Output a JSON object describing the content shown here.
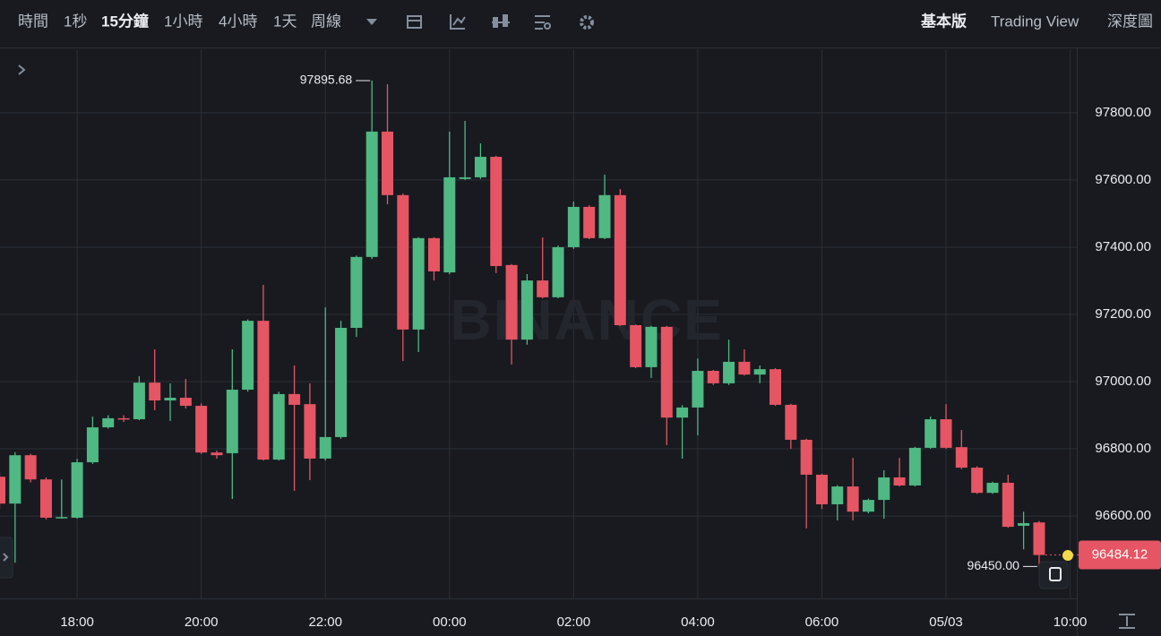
{
  "toolbar": {
    "intervals": [
      "時間",
      "1秒",
      "15分鐘",
      "1小時",
      "4小時",
      "1天",
      "周線"
    ],
    "views": [
      "基本版",
      "Trading View",
      "深度圖"
    ]
  },
  "chart_data": {
    "type": "candlestick",
    "watermark": "BINANCE",
    "up_color": "#4fb883",
    "down_color": "#e55563",
    "categories": [
      null,
      null,
      null,
      null,
      null,
      null,
      null,
      null,
      null,
      null,
      null,
      null,
      null,
      null,
      null,
      null,
      null,
      null,
      null,
      null,
      null,
      null,
      null,
      null,
      null,
      null,
      null,
      null,
      null,
      null,
      null,
      null,
      null,
      null,
      null,
      null,
      null,
      null,
      null,
      null,
      null,
      null,
      null,
      null,
      null,
      null,
      null,
      null,
      null,
      null,
      null,
      null,
      null,
      null,
      null,
      null,
      null,
      null,
      null,
      null,
      null,
      null,
      null,
      null,
      null,
      null,
      null,
      null
    ],
    "open": [
      96717,
      96637,
      96781,
      96709,
      96595,
      96595,
      96760,
      96864,
      96891,
      96888,
      96997,
      96944,
      96952,
      96928,
      96789,
      96787,
      96976,
      97181,
      96768,
      96963,
      96933,
      96771,
      96835,
      97160,
      97371,
      97744,
      97555,
      97155,
      97427,
      97325,
      97603,
      97608,
      97669,
      97347,
      97125,
      97301,
      97251,
      97400,
      97520,
      97427,
      97555,
      97168,
      97043,
      97163,
      96893,
      96923,
      97032,
      96995,
      97059,
      97021,
      97037,
      96931,
      96827,
      96723,
      96635,
      96688,
      96613,
      96648,
      96715,
      96691,
      96803,
      96888,
      96805,
      96744,
      96669,
      96699,
      96571,
      96581
    ],
    "high": [
      96730,
      96790,
      96785,
      96715,
      96709,
      96770,
      96896,
      96900,
      96900,
      97016,
      97096,
      96995,
      97008,
      96935,
      96795,
      97096,
      97185,
      97288,
      96970,
      97048,
      96995,
      97221,
      97181,
      97375,
      97895.68,
      97885,
      97560,
      97430,
      97430,
      97744,
      97776,
      97709,
      97672,
      97350,
      97320,
      97429,
      97405,
      97536,
      97525,
      97616,
      97573,
      97170,
      97166,
      97166,
      96930,
      97069,
      97035,
      97125,
      97096,
      97048,
      97040,
      96934,
      96830,
      96726,
      96692,
      96773,
      96652,
      96736,
      96773,
      96806,
      96896,
      96933,
      96856,
      96748,
      96702,
      96723,
      96613,
      96585
    ],
    "low": [
      96620,
      96461,
      96700,
      96590,
      96592,
      96592,
      96755,
      96860,
      96880,
      96885,
      96915,
      96883,
      96920,
      96785,
      96771,
      96651,
      96970,
      96765,
      96765,
      96675,
      96707,
      96765,
      96830,
      97133,
      97365,
      97528,
      97061,
      97088,
      97301,
      97320,
      97600,
      97603,
      97323,
      97051,
      97110,
      97248,
      97248,
      97395,
      97424,
      97424,
      97165,
      97040,
      97011,
      96811,
      96771,
      96840,
      96990,
      96990,
      97018,
      96995,
      96928,
      96800,
      96563,
      96621,
      96587,
      96587,
      96608,
      96592,
      96688,
      96688,
      96800,
      96800,
      96740,
      96666,
      96666,
      96565,
      96501,
      96450
    ],
    "close": [
      96637,
      96781,
      96709,
      96595,
      96597,
      96760,
      96864,
      96891,
      96888,
      96997,
      96944,
      96952,
      96928,
      96789,
      96781,
      96976,
      97181,
      96768,
      96963,
      96931,
      96771,
      96835,
      97160,
      97371,
      97744,
      97555,
      97155,
      97427,
      97328,
      97608,
      97608,
      97669,
      97344,
      97125,
      97301,
      97251,
      97400,
      97520,
      97427,
      97555,
      97168,
      97043,
      97163,
      96893,
      96923,
      97032,
      96995,
      97059,
      97021,
      97037,
      96931,
      96827,
      96723,
      96635,
      96688,
      96613,
      96648,
      96715,
      96691,
      96803,
      96888,
      96803,
      96744,
      96669,
      96699,
      96568,
      96579,
      96484.12
    ],
    "ylim": [
      96355,
      97989
    ],
    "yticks": [
      {
        "value": 96600,
        "label": "96600.00"
      },
      {
        "value": 96800,
        "label": "96800.00"
      },
      {
        "value": 97000,
        "label": "97000.00"
      },
      {
        "value": 97200,
        "label": "97200.00"
      },
      {
        "value": 97400,
        "label": "97400.00"
      },
      {
        "value": 97600,
        "label": "97600.00"
      },
      {
        "value": 97800,
        "label": "97800.00"
      }
    ],
    "xticks": [
      {
        "value": 5,
        "label": "18:00"
      },
      {
        "value": 13,
        "label": "20:00"
      },
      {
        "value": 21,
        "label": "22:00"
      },
      {
        "value": 29,
        "label": "00:00"
      },
      {
        "value": 37,
        "label": "02:00"
      },
      {
        "value": 45,
        "label": "04:00"
      },
      {
        "value": 53,
        "label": "06:00"
      },
      {
        "value": 61,
        "label": "05/03"
      },
      {
        "value": 69,
        "label": "10:00"
      }
    ],
    "grid": true,
    "max_label": {
      "value": 97895.68,
      "label": "97895.68"
    },
    "min_label": {
      "value": 96450,
      "label": "96450.00"
    },
    "last_price": {
      "value": 96484.12,
      "label": "96484.12"
    }
  }
}
